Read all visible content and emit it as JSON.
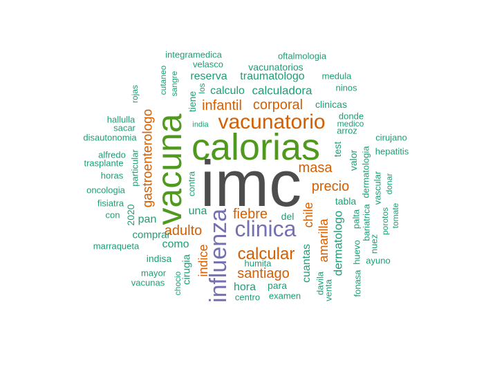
{
  "colors": {
    "gray": "#4d4d4d",
    "green": "#4f9a1e",
    "orange": "#d55e00",
    "purple": "#7570b3",
    "teal": "#1b9e77"
  },
  "words": [
    {
      "t": "imc",
      "c": "gray"
    },
    {
      "t": "calorias",
      "c": "green"
    },
    {
      "t": "vacuna",
      "c": "green"
    },
    {
      "t": "influenza",
      "c": "purple"
    },
    {
      "t": "clinica",
      "c": "purple"
    },
    {
      "t": "vacunatorio",
      "c": "orange"
    },
    {
      "t": "calcular",
      "c": "orange"
    },
    {
      "t": "masa",
      "c": "orange"
    },
    {
      "t": "precio",
      "c": "orange"
    },
    {
      "t": "fiebre",
      "c": "orange"
    },
    {
      "t": "adulto",
      "c": "orange"
    },
    {
      "t": "santiago",
      "c": "orange"
    },
    {
      "t": "corporal",
      "c": "orange"
    },
    {
      "t": "infantil",
      "c": "orange"
    },
    {
      "t": "gastroenterologo",
      "c": "orange"
    },
    {
      "t": "indice",
      "c": "orange"
    },
    {
      "t": "amarilla",
      "c": "orange"
    },
    {
      "t": "chile",
      "c": "orange"
    },
    {
      "t": "dermatologo",
      "c": "teal"
    },
    {
      "t": "calculadora",
      "c": "teal"
    },
    {
      "t": "traumatologo",
      "c": "teal"
    },
    {
      "t": "vacunatorios",
      "c": "teal"
    },
    {
      "t": "reserva",
      "c": "teal"
    },
    {
      "t": "calculo",
      "c": "teal"
    },
    {
      "t": "clinicas",
      "c": "teal"
    },
    {
      "t": "como",
      "c": "teal"
    },
    {
      "t": "pan",
      "c": "teal"
    },
    {
      "t": "una",
      "c": "teal"
    },
    {
      "t": "comprar",
      "c": "teal"
    },
    {
      "t": "hora",
      "c": "teal"
    },
    {
      "t": "cuantas",
      "c": "teal"
    },
    {
      "t": "tabla",
      "c": "teal"
    },
    {
      "t": "valor",
      "c": "teal"
    },
    {
      "t": "test",
      "c": "teal"
    },
    {
      "t": "cirugia",
      "c": "teal"
    },
    {
      "t": "indisa",
      "c": "teal"
    },
    {
      "t": "del",
      "c": "teal"
    },
    {
      "t": "para",
      "c": "teal"
    },
    {
      "t": "arroz",
      "c": "teal"
    },
    {
      "t": "donde",
      "c": "teal"
    },
    {
      "t": "medico",
      "c": "teal"
    },
    {
      "t": "integramedica",
      "c": "teal"
    },
    {
      "t": "oftalmologia",
      "c": "teal"
    },
    {
      "t": "velasco",
      "c": "teal"
    },
    {
      "t": "medula",
      "c": "teal"
    },
    {
      "t": "ninos",
      "c": "teal"
    },
    {
      "t": "los",
      "c": "teal"
    },
    {
      "t": "tiene",
      "c": "teal"
    },
    {
      "t": "sangre",
      "c": "teal"
    },
    {
      "t": "cutaneo",
      "c": "teal"
    },
    {
      "t": "rojas",
      "c": "teal"
    },
    {
      "t": "hallulla",
      "c": "teal"
    },
    {
      "t": "sacar",
      "c": "teal"
    },
    {
      "t": "disautonomia",
      "c": "teal"
    },
    {
      "t": "india",
      "c": "teal"
    },
    {
      "t": "alfredo",
      "c": "teal"
    },
    {
      "t": "trasplante",
      "c": "teal"
    },
    {
      "t": "particular",
      "c": "teal"
    },
    {
      "t": "horas",
      "c": "teal"
    },
    {
      "t": "oncologia",
      "c": "teal"
    },
    {
      "t": "fisiatra",
      "c": "teal"
    },
    {
      "t": "con",
      "c": "teal"
    },
    {
      "t": "2020",
      "c": "teal"
    },
    {
      "t": "marraqueta",
      "c": "teal"
    },
    {
      "t": "mayor",
      "c": "teal"
    },
    {
      "t": "vacunas",
      "c": "teal"
    },
    {
      "t": "chocio",
      "c": "teal"
    },
    {
      "t": "contra",
      "c": "teal"
    },
    {
      "t": "humita",
      "c": "teal"
    },
    {
      "t": "centro",
      "c": "teal"
    },
    {
      "t": "examen",
      "c": "teal"
    },
    {
      "t": "davila",
      "c": "teal"
    },
    {
      "t": "venta",
      "c": "teal"
    },
    {
      "t": "fonasa",
      "c": "teal"
    },
    {
      "t": "huevo",
      "c": "teal"
    },
    {
      "t": "palta",
      "c": "teal"
    },
    {
      "t": "bariatrica",
      "c": "teal"
    },
    {
      "t": "dermatologia",
      "c": "teal"
    },
    {
      "t": "nuez",
      "c": "teal"
    },
    {
      "t": "vascular",
      "c": "teal"
    },
    {
      "t": "porotos",
      "c": "teal"
    },
    {
      "t": "donar",
      "c": "teal"
    },
    {
      "t": "tomate",
      "c": "teal"
    },
    {
      "t": "cirujano",
      "c": "teal"
    },
    {
      "t": "hepatitis",
      "c": "teal"
    },
    {
      "t": "ayuno",
      "c": "teal"
    }
  ]
}
